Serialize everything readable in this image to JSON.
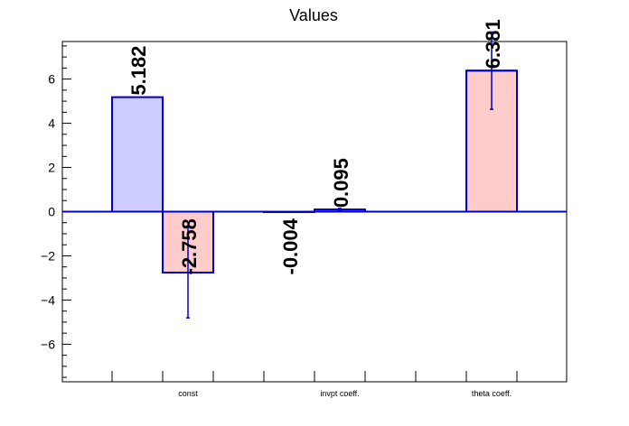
{
  "chart_data": {
    "type": "bar",
    "title": "Values",
    "xlabel": "",
    "ylabel": "",
    "categories": [
      "const",
      "invpt coeff.",
      "theta coeff."
    ],
    "ylim": [
      -7.7,
      7.7
    ],
    "yticks": [
      -6,
      -4,
      -2,
      0,
      2,
      4,
      6
    ],
    "grid": false,
    "legend": "none",
    "bars": [
      {
        "slot": 0,
        "value": 5.182,
        "label": "5.182",
        "error": null,
        "fill": "#ccccff"
      },
      {
        "slot": 1,
        "value": -2.758,
        "label": "-2.758",
        "error": 2.05,
        "fill": "#ffcccc"
      },
      {
        "slot": 3,
        "value": -0.004,
        "label": "-0.004",
        "error": 0.0,
        "fill": "#ffcccc"
      },
      {
        "slot": 4,
        "value": 0.095,
        "label": "0.095",
        "error": 0.05,
        "fill": "#ffcccc"
      },
      {
        "slot": 7,
        "value": 6.381,
        "label": "6.381",
        "error": 1.75,
        "fill": "#ffcccc"
      }
    ],
    "category_slots": [
      1,
      4,
      7
    ],
    "slot_count": 9,
    "colors": {
      "outline": "#0000cc",
      "axis": "#000000"
    }
  }
}
